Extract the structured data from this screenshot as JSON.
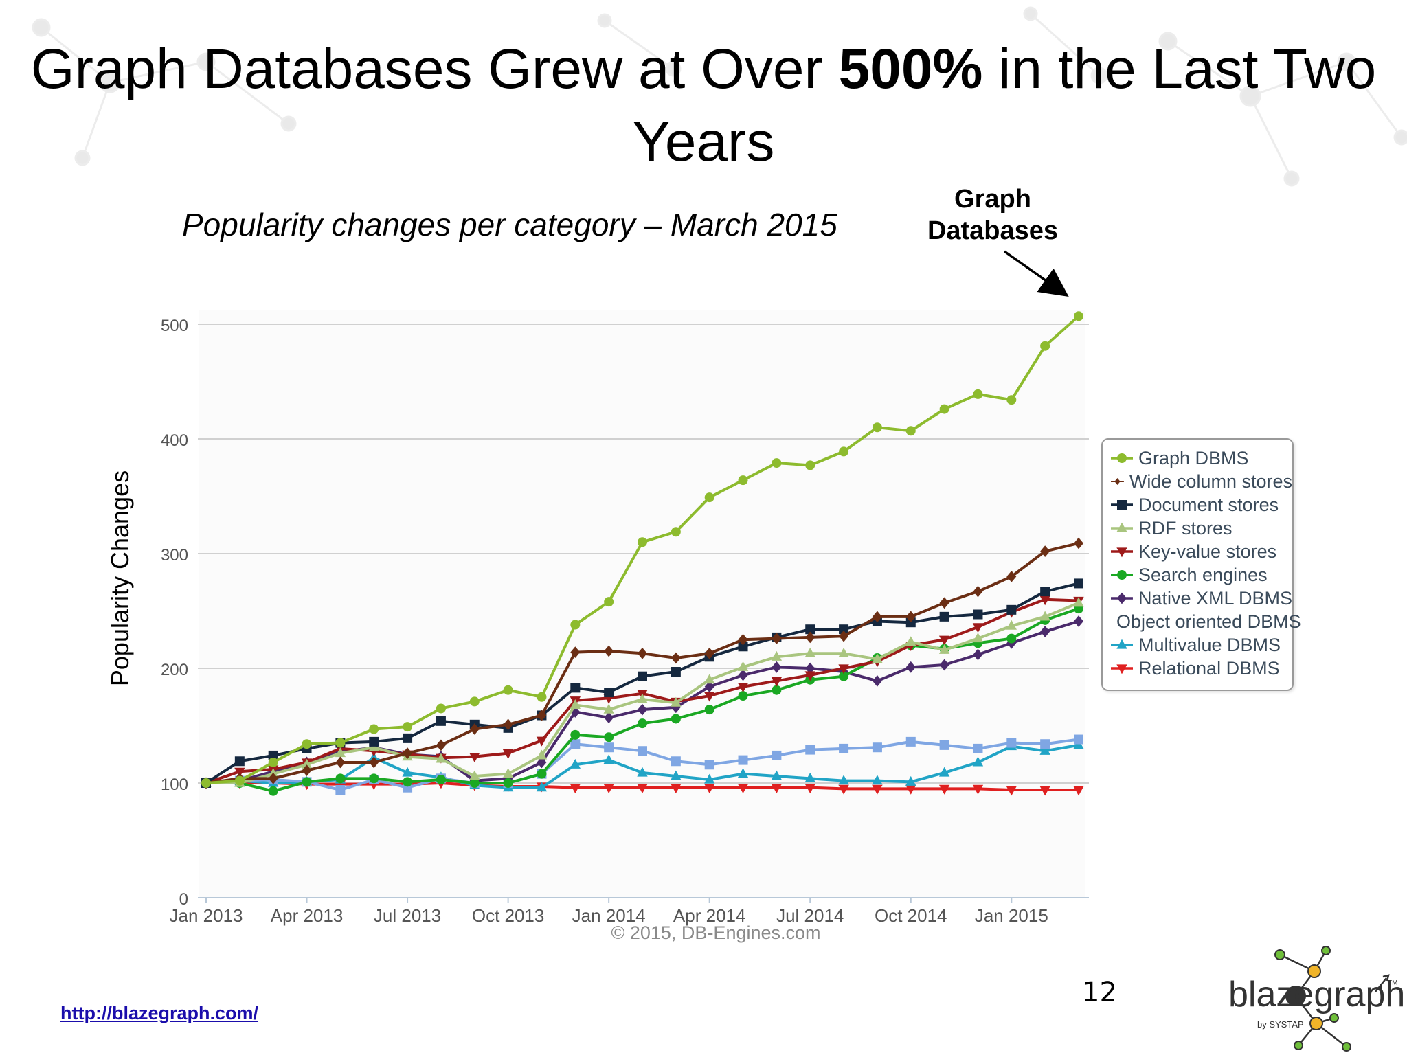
{
  "slide": {
    "title_before": "Graph Databases Grew at Over",
    "title_bold": "500%",
    "title_after": "in the Last Two Years",
    "subtitle": "Popularity changes per category – March 2015",
    "callout": "Graph Databases",
    "y_axis_title": "Popularity Changes",
    "page_number": "12",
    "link": "http://blazegraph.com/",
    "logo_text": "blazegraph",
    "logo_tagline": "by SYSTAP",
    "logo_tm": "TM",
    "copyright": "© 2015, DB-Engines.com"
  },
  "chart_data": {
    "type": "line",
    "ylim": [
      0,
      500
    ],
    "y_ticks": [
      "0",
      "100",
      "200",
      "300",
      "400",
      "500"
    ],
    "x_tick_labels": [
      "Jan 2013",
      "Apr 2013",
      "Jul 2013",
      "Oct 2013",
      "Jan 2014",
      "Apr 2014",
      "Jul 2014",
      "Oct 2014",
      "Jan 2015"
    ],
    "x": [
      "Jan 2013",
      "Feb 2013",
      "Mar 2013",
      "Apr 2013",
      "May 2013",
      "Jun 2013",
      "Jul 2013",
      "Aug 2013",
      "Sep 2013",
      "Oct 2013",
      "Nov 2013",
      "Dec 2013",
      "Jan 2014",
      "Feb 2014",
      "Mar 2014",
      "Apr 2014",
      "May 2014",
      "Jun 2014",
      "Jul 2014",
      "Aug 2014",
      "Sep 2014",
      "Oct 2014",
      "Nov 2014",
      "Dec 2014",
      "Jan 2015",
      "Feb 2015",
      "Mar 2015"
    ],
    "grid": true,
    "legend_position": "right",
    "series": [
      {
        "name": "Graph DBMS",
        "color": "#8dbb2e",
        "marker": "circle",
        "values": [
          100,
          102,
          118,
          134,
          135,
          147,
          149,
          165,
          171,
          181,
          175,
          238,
          258,
          310,
          319,
          349,
          364,
          379,
          377,
          389,
          410,
          407,
          426,
          439,
          434,
          481,
          507
        ]
      },
      {
        "name": "Wide column stores",
        "color": "#6b2e14",
        "marker": "diamond",
        "values": [
          100,
          104,
          104,
          111,
          118,
          118,
          126,
          133,
          147,
          151,
          159,
          214,
          215,
          213,
          209,
          213,
          225,
          226,
          227,
          228,
          245,
          245,
          257,
          267,
          280,
          302,
          309
        ]
      },
      {
        "name": "Document stores",
        "color": "#15283f",
        "marker": "square",
        "values": [
          100,
          119,
          124,
          130,
          135,
          136,
          139,
          154,
          151,
          148,
          159,
          183,
          179,
          193,
          197,
          210,
          219,
          227,
          234,
          234,
          241,
          240,
          245,
          247,
          251,
          267,
          274
        ]
      },
      {
        "name": "RDF stores",
        "color": "#a9c57f",
        "marker": "triangle",
        "values": [
          100,
          100,
          108,
          116,
          126,
          131,
          123,
          121,
          106,
          108,
          124,
          168,
          164,
          173,
          170,
          190,
          201,
          210,
          213,
          213,
          208,
          223,
          216,
          226,
          237,
          245,
          257
        ]
      },
      {
        "name": "Key-value stores",
        "color": "#9e1a1a",
        "marker": "triangle-down",
        "values": [
          100,
          110,
          112,
          118,
          130,
          128,
          125,
          122,
          123,
          126,
          137,
          172,
          174,
          178,
          171,
          176,
          184,
          189,
          194,
          200,
          206,
          220,
          225,
          236,
          249,
          260,
          259
        ]
      },
      {
        "name": "Search engines",
        "color": "#1aa823",
        "marker": "circle",
        "values": [
          100,
          100,
          93,
          101,
          104,
          104,
          101,
          103,
          100,
          100,
          108,
          142,
          140,
          152,
          156,
          164,
          176,
          181,
          190,
          193,
          209,
          220,
          217,
          222,
          226,
          242,
          252
        ]
      },
      {
        "name": "Native XML DBMS",
        "color": "#4a2a6b",
        "marker": "diamond",
        "values": [
          100,
          102,
          110,
          118,
          127,
          131,
          125,
          123,
          102,
          104,
          118,
          162,
          157,
          164,
          166,
          184,
          194,
          201,
          200,
          197,
          189,
          201,
          203,
          212,
          222,
          232,
          241
        ]
      },
      {
        "name": "Object oriented DBMS",
        "color": "#7fa6e3",
        "marker": "square",
        "values": [
          100,
          102,
          103,
          101,
          94,
          103,
          96,
          104,
          100,
          100,
          108,
          134,
          131,
          128,
          119,
          116,
          120,
          124,
          129,
          130,
          131,
          136,
          133,
          130,
          135,
          134,
          138
        ]
      },
      {
        "name": "Multivalue DBMS",
        "color": "#21a4c6",
        "marker": "triangle",
        "values": [
          100,
          102,
          100,
          101,
          103,
          122,
          109,
          105,
          98,
          96,
          96,
          116,
          120,
          109,
          106,
          103,
          108,
          106,
          104,
          102,
          102,
          101,
          109,
          118,
          132,
          128,
          133
        ]
      },
      {
        "name": "Relational DBMS",
        "color": "#e02020",
        "marker": "triangle-down",
        "values": [
          100,
          100,
          100,
          99,
          99,
          99,
          99,
          100,
          98,
          97,
          97,
          96,
          96,
          96,
          96,
          96,
          96,
          96,
          96,
          95,
          95,
          95,
          95,
          95,
          94,
          94,
          94
        ]
      }
    ]
  }
}
